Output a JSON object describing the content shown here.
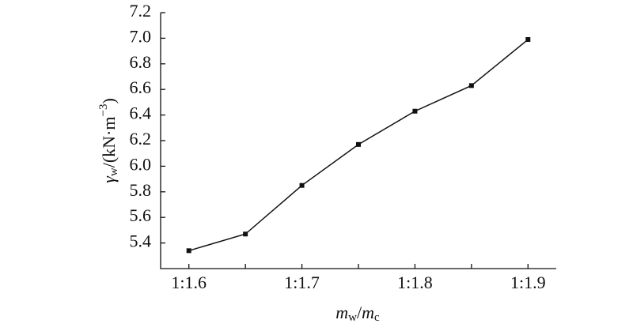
{
  "chart_data": {
    "type": "line",
    "x_label": {
      "symbol": "m",
      "subscript": "w",
      "slash": "/",
      "symbol2": "m",
      "subscript2": "c"
    },
    "y_label": {
      "symbol": "γ",
      "subscript": "w",
      "unit": "/(kN·m",
      "exponent": "−3",
      "close": ")"
    },
    "categories": [
      "1:1.6",
      null,
      "1:1.7",
      null,
      "1:1.8",
      null,
      "1:1.9"
    ],
    "values": [
      5.34,
      5.47,
      5.85,
      6.17,
      6.43,
      6.63,
      6.99
    ],
    "color": "#111111",
    "ylim": [
      5.2,
      7.2
    ],
    "yticks": [
      5.4,
      5.6,
      5.8,
      {
        "value": 6,
        "label": "6.0"
      },
      6.2,
      6.4,
      6.6,
      6.8,
      {
        "value": 7,
        "label": "7.0"
      },
      7.2
    ]
  }
}
